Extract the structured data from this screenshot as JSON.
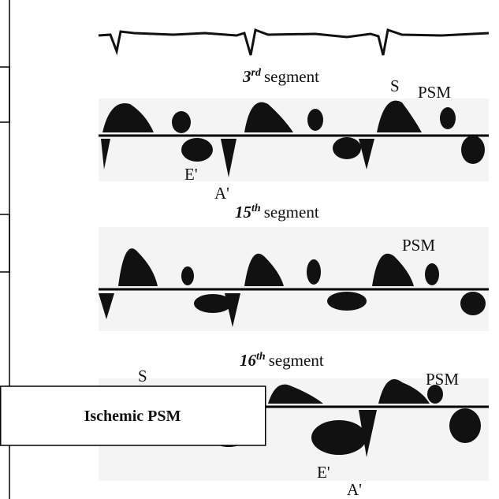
{
  "panels": [
    {
      "title": {
        "number": "3",
        "suffix": "rd",
        "word": "segment"
      },
      "labels": [
        "S",
        "PSM",
        "E'",
        "A'"
      ]
    },
    {
      "title": {
        "number": "15",
        "suffix": "th",
        "word": "segment"
      },
      "labels": [
        "PSM"
      ]
    },
    {
      "title": {
        "number": "16",
        "suffix": "th",
        "word": "segment"
      },
      "labels": [
        "S",
        "PSM",
        "E'",
        "A'"
      ]
    }
  ],
  "callout": "Ischemic PSM"
}
